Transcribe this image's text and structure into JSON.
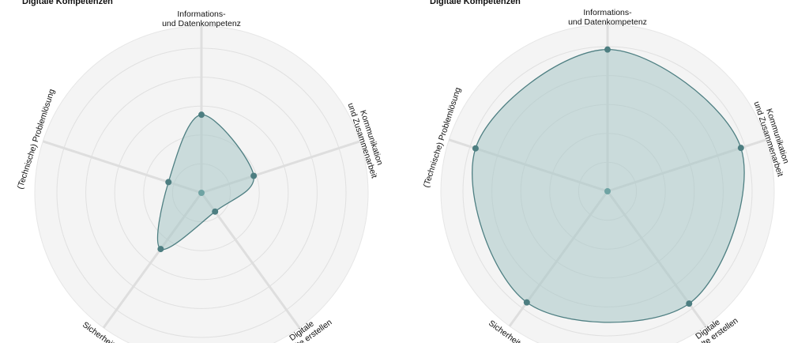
{
  "chart_data": [
    {
      "type": "radar",
      "title": "Digitale Kompetenzen",
      "axes": [
        [
          "Informations-",
          "und Datenkompetenz"
        ],
        [
          "Kommunikation",
          "und Zusammenarbeit"
        ],
        [
          "Digitale",
          "Inhalte erstellen"
        ],
        [
          "Sicherheit"
        ],
        [
          "(Technische) Problemlösung"
        ]
      ],
      "rlim": [
        0,
        5
      ],
      "rings": 5,
      "grid": true,
      "values": [
        2.7,
        1.9,
        0.8,
        2.4,
        1.2
      ],
      "center_value": 0,
      "colors": {
        "fill": "#a8c7c7",
        "stroke": "#4e7f82",
        "point": "#4d7e81",
        "center": "#6fa3a3"
      }
    },
    {
      "type": "radar",
      "title": "Digitale Kompetenzen",
      "axes": [
        [
          "Informations-",
          "und Datenkompetenz"
        ],
        [
          "Kommunikation",
          "und Zusammenarbeit"
        ],
        [
          "Digitale",
          "Inhalte erstellen"
        ],
        [
          "Sicherheit"
        ],
        [
          "(Technische) Problemlösung"
        ]
      ],
      "rlim": [
        0,
        5
      ],
      "rings": 5,
      "grid": true,
      "values": [
        4.9,
        4.85,
        4.8,
        4.75,
        4.8
      ],
      "center_value": 0,
      "colors": {
        "fill": "#a8c7c7",
        "stroke": "#4e7f82",
        "point": "#4d7e81",
        "center": "#6fa3a3"
      }
    }
  ]
}
